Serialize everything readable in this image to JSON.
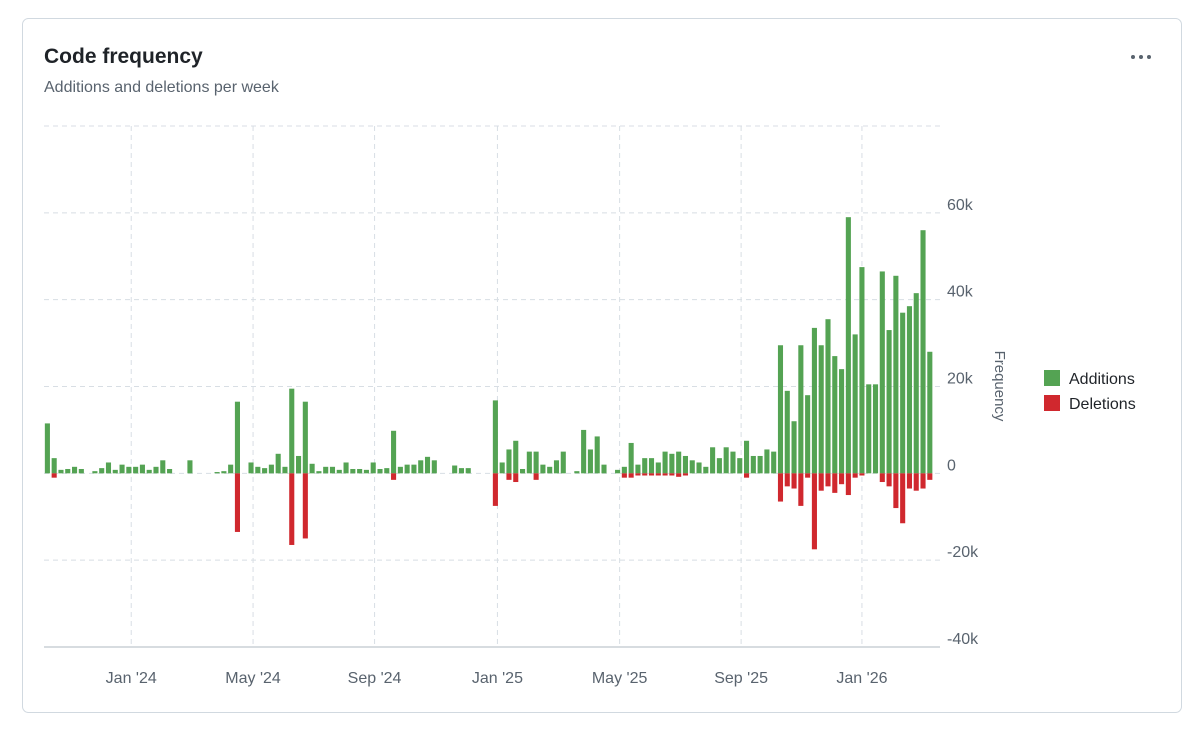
{
  "chart_data": {
    "type": "bar",
    "title": "Code frequency",
    "subtitle": "Additions and deletions per week",
    "y_label": "Frequency",
    "xlim": [
      -0.5,
      131.5
    ],
    "xticks": [
      {
        "value": 12.35,
        "label": "Jan '24"
      },
      {
        "value": 30.3,
        "label": "May '24"
      },
      {
        "value": 48.2,
        "label": "Sep '24"
      },
      {
        "value": 66.3,
        "label": "Jan '25"
      },
      {
        "value": 84.3,
        "label": "May '25"
      },
      {
        "value": 102.2,
        "label": "Sep '25"
      },
      {
        "value": 120,
        "label": "Jan '26"
      }
    ],
    "ylim": [
      -40000,
      80000
    ],
    "yticks": [
      {
        "value": -40000,
        "label": "-40k"
      },
      {
        "value": -20000,
        "label": "-20k"
      },
      0,
      {
        "value": 20000,
        "label": "20k"
      },
      {
        "value": 40000,
        "label": "40k"
      },
      {
        "value": 60000,
        "label": "60k"
      }
    ],
    "grid": true,
    "legend": "right",
    "series": [
      {
        "name": "Additions",
        "color": "#54a353",
        "values": [
          11500,
          3500,
          800,
          1000,
          1500,
          1000,
          0,
          500,
          1200,
          2500,
          800,
          2000,
          1500,
          1500,
          2000,
          800,
          1500,
          3000,
          1000,
          0,
          0,
          3000,
          0,
          0,
          0,
          300,
          500,
          2000,
          16500,
          0,
          2500,
          1500,
          1200,
          2000,
          4500,
          1500,
          19500,
          4000,
          16500,
          2200,
          500,
          1500,
          1500,
          800,
          2500,
          1000,
          1000,
          800,
          2500,
          1000,
          1200,
          9800,
          1500,
          2000,
          2000,
          3000,
          3800,
          3000,
          0,
          0,
          1800,
          1200,
          1200,
          0,
          0,
          0,
          16800,
          2500,
          5500,
          7500,
          1000,
          5000,
          5000,
          2000,
          1500,
          3000,
          5000,
          0,
          500,
          10000,
          5500,
          8500,
          2000,
          0,
          800,
          1500,
          7000,
          2000,
          3500,
          3500,
          2500,
          5000,
          4500,
          5000,
          4000,
          3000,
          2500,
          1500,
          6000,
          3500,
          6000,
          5000,
          3500,
          7500,
          4000,
          4000,
          5500,
          5000,
          29500,
          19000,
          12000,
          29500,
          18000,
          33500,
          29500,
          35500,
          27000,
          24000,
          59000,
          32000,
          47500,
          20500,
          20500,
          46500,
          33000,
          45500,
          37000,
          38500,
          41500,
          56000,
          28000
        ]
      },
      {
        "name": "Deletions",
        "color": "#d0282e",
        "values": [
          0,
          -1000,
          0,
          0,
          0,
          0,
          0,
          0,
          0,
          0,
          0,
          0,
          0,
          0,
          0,
          0,
          0,
          0,
          0,
          0,
          0,
          0,
          0,
          0,
          0,
          0,
          0,
          0,
          -13500,
          0,
          0,
          0,
          0,
          0,
          0,
          0,
          -16500,
          0,
          -15000,
          0,
          0,
          0,
          0,
          0,
          0,
          0,
          0,
          0,
          0,
          0,
          0,
          -1500,
          0,
          0,
          0,
          0,
          0,
          0,
          0,
          0,
          0,
          0,
          0,
          0,
          0,
          0,
          -7500,
          0,
          -1500,
          -2000,
          0,
          0,
          -1500,
          0,
          0,
          0,
          0,
          0,
          0,
          0,
          0,
          0,
          0,
          0,
          0,
          -1000,
          -1000,
          -500,
          -500,
          -500,
          -500,
          -500,
          -500,
          -800,
          -500,
          0,
          0,
          0,
          0,
          0,
          0,
          0,
          0,
          -1000,
          0,
          0,
          0,
          0,
          -6500,
          -3000,
          -3500,
          -7500,
          -1000,
          -17500,
          -4000,
          -3000,
          -4500,
          -2500,
          -5000,
          -1000,
          -500,
          0,
          0,
          -2000,
          -3000,
          -8000,
          -11500,
          -3500,
          -4000,
          -3500,
          -1500
        ]
      }
    ]
  }
}
